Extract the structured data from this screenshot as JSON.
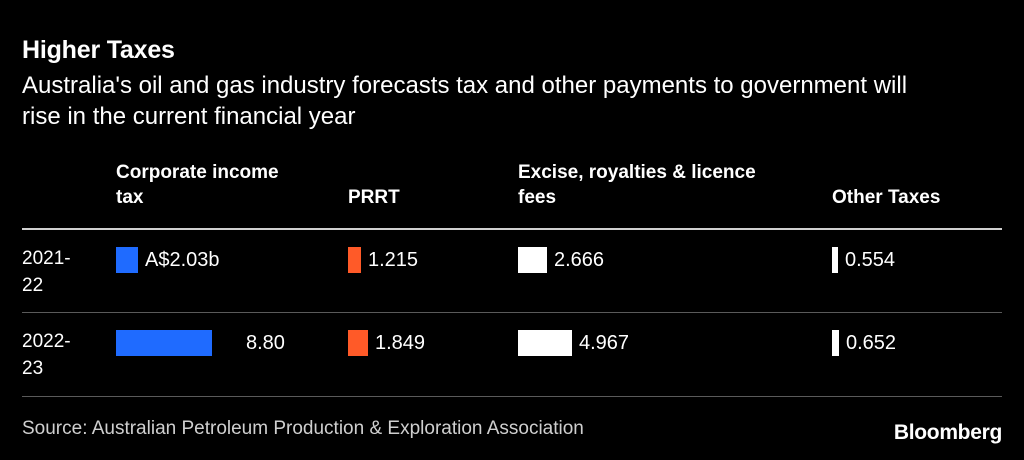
{
  "header": {
    "title": "Higher Taxes",
    "subtitle": "Australia's oil and gas industry forecasts tax and other payments to government will rise in the current financial year"
  },
  "chart_data": {
    "type": "bar",
    "title": "Higher Taxes",
    "subtitle": "Australia's oil and gas industry forecasts tax and other payments to government will rise in the current financial year",
    "categories": [
      "2021-22",
      "2022-23"
    ],
    "category_labels": [
      [
        "2021-",
        "22"
      ],
      [
        "2022-",
        "23"
      ]
    ],
    "series": [
      {
        "name": "Corporate income tax",
        "name_lines": [
          "Corporate income",
          "tax"
        ],
        "values": [
          2.03,
          8.8
        ],
        "labels": [
          "A$2.03b",
          "8.80"
        ],
        "color": "#1f6bff"
      },
      {
        "name": "PRRT",
        "name_lines": [
          "",
          "PRRT"
        ],
        "values": [
          1.215,
          1.849
        ],
        "labels": [
          "1.215",
          "1.849"
        ],
        "color": "#ff5a28"
      },
      {
        "name": "Excise, royalties & licence fees",
        "name_lines": [
          "Excise, royalties & licence",
          "fees"
        ],
        "values": [
          2.666,
          4.967
        ],
        "labels": [
          "2.666",
          "4.967"
        ],
        "color": "#ffffff"
      },
      {
        "name": "Other Taxes",
        "name_lines": [
          "",
          "Other Taxes"
        ],
        "values": [
          0.554,
          0.652
        ],
        "labels": [
          "0.554",
          "0.652"
        ],
        "color": "#ffffff"
      }
    ],
    "units": "A$ billions"
  },
  "footer": {
    "source": "Source: Australian Petroleum Production & Exploration Association",
    "brand": "Bloomberg"
  }
}
